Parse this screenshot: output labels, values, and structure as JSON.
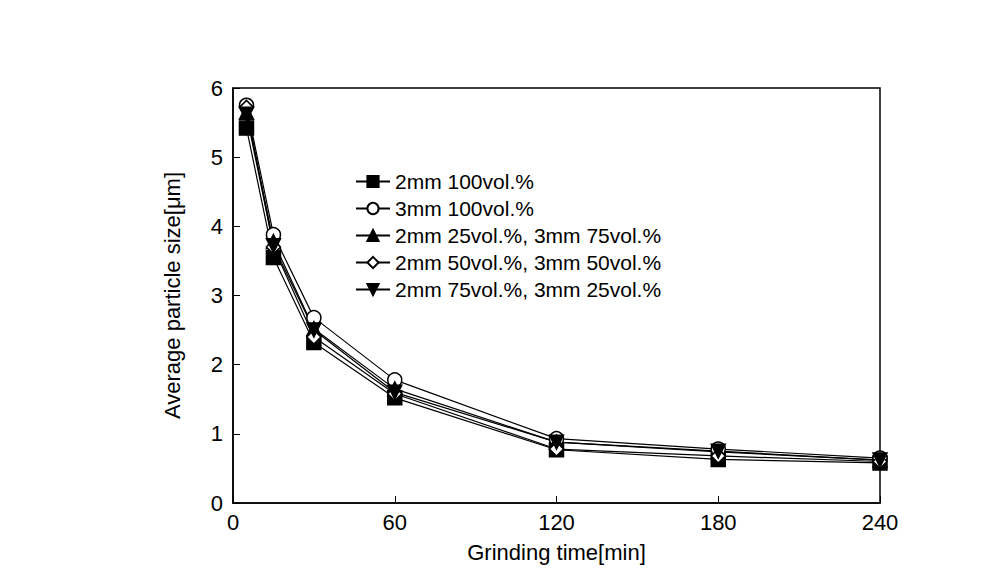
{
  "chart_data": {
    "type": "line",
    "x_label": "Grinding time[min]",
    "y_label": "Average particle size[μm]",
    "x": [
      5,
      15,
      30,
      60,
      120,
      180,
      240
    ],
    "series": [
      {
        "name": "2mm 100vol.%",
        "color": "#000000",
        "marker": "square",
        "values": [
          5.42,
          3.55,
          2.32,
          1.52,
          0.77,
          0.63,
          0.58
        ]
      },
      {
        "name": "3mm 100vol.%",
        "color": "#000000",
        "marker": "open_circle",
        "values": [
          5.75,
          3.88,
          2.68,
          1.78,
          0.93,
          0.78,
          0.65
        ]
      },
      {
        "name": "2mm 25vol.%, 3mm 75vol.%",
        "color": "#000000",
        "marker": "triangle",
        "values": [
          5.65,
          3.78,
          2.52,
          1.65,
          0.88,
          0.74,
          0.62
        ]
      },
      {
        "name": "2mm 50vol.%, 3mm 50vol.%",
        "color": "#000000",
        "marker": "open_diamond",
        "values": [
          5.72,
          3.7,
          2.4,
          1.58,
          0.78,
          0.68,
          0.6
        ]
      },
      {
        "name": "2mm 75vol.%, 3mm 25vol.%",
        "color": "#000000",
        "marker": "triangle_down",
        "values": [
          5.62,
          3.72,
          2.5,
          1.6,
          0.88,
          0.75,
          0.62
        ]
      }
    ],
    "xlim": [
      0,
      240
    ],
    "xticks": [
      0,
      60,
      120,
      180,
      240
    ],
    "ylim": [
      0,
      6
    ],
    "yticks": [
      0,
      1,
      2,
      3,
      4,
      5,
      6
    ],
    "grid": false,
    "legend": "upper right"
  }
}
